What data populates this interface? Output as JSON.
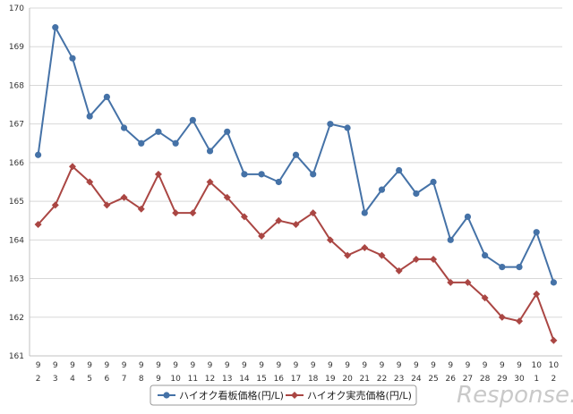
{
  "chart_data": {
    "type": "line",
    "categories": [
      [
        "9",
        "2"
      ],
      [
        "9",
        "3"
      ],
      [
        "9",
        "4"
      ],
      [
        "9",
        "5"
      ],
      [
        "9",
        "6"
      ],
      [
        "9",
        "7"
      ],
      [
        "9",
        "8"
      ],
      [
        "9",
        "9"
      ],
      [
        "9",
        "10"
      ],
      [
        "9",
        "11"
      ],
      [
        "9",
        "12"
      ],
      [
        "9",
        "13"
      ],
      [
        "9",
        "14"
      ],
      [
        "9",
        "15"
      ],
      [
        "9",
        "16"
      ],
      [
        "9",
        "17"
      ],
      [
        "9",
        "18"
      ],
      [
        "9",
        "19"
      ],
      [
        "9",
        "20"
      ],
      [
        "9",
        "21"
      ],
      [
        "9",
        "22"
      ],
      [
        "9",
        "23"
      ],
      [
        "9",
        "24"
      ],
      [
        "9",
        "25"
      ],
      [
        "9",
        "26"
      ],
      [
        "9",
        "27"
      ],
      [
        "9",
        "28"
      ],
      [
        "9",
        "29"
      ],
      [
        "9",
        "30"
      ],
      [
        "10",
        "1"
      ],
      [
        "10",
        "2"
      ]
    ],
    "ylim": [
      161,
      170
    ],
    "yticks": [
      "161",
      "162",
      "163",
      "164",
      "165",
      "166",
      "167",
      "168",
      "169",
      "170"
    ],
    "grid": true,
    "legend": "bottom-center",
    "series": [
      {
        "name": "ハイオク看板価格(円/L)",
        "color": "#4572a7",
        "marker": "circle",
        "values": [
          166.2,
          169.5,
          168.7,
          167.2,
          167.7,
          166.9,
          166.5,
          166.8,
          166.5,
          167.1,
          166.3,
          166.8,
          165.7,
          165.7,
          165.5,
          166.2,
          165.7,
          167.0,
          166.9,
          164.7,
          165.3,
          165.8,
          165.2,
          165.5,
          164.0,
          164.6,
          163.6,
          163.3,
          163.3,
          164.2,
          162.9
        ]
      },
      {
        "name": "ハイオク実売価格(円/L)",
        "color": "#aa4643",
        "marker": "diamond",
        "values": [
          164.4,
          164.9,
          165.9,
          165.5,
          164.9,
          165.1,
          164.8,
          165.7,
          164.7,
          164.7,
          165.5,
          165.1,
          164.6,
          164.1,
          164.5,
          164.4,
          164.7,
          164.0,
          163.6,
          163.8,
          163.6,
          163.2,
          163.5,
          163.5,
          162.9,
          162.9,
          162.5,
          162.0,
          161.9,
          162.6,
          161.4
        ]
      }
    ]
  },
  "watermark": "Response."
}
